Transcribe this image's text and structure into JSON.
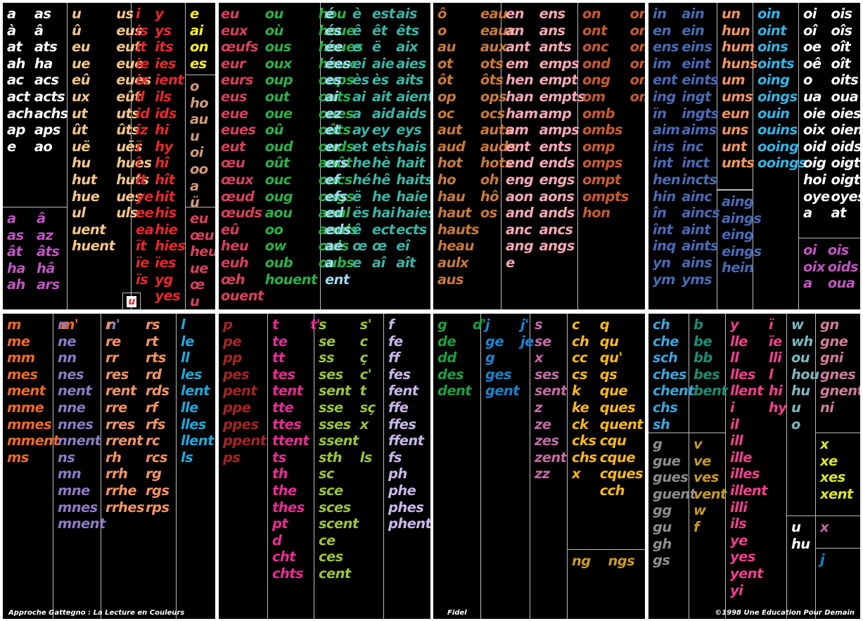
{
  "colors": {
    "white": "#ffffff",
    "pink": "#c054c0",
    "cream": "#f2c68a",
    "red": "#e8272b",
    "yellow": "#ffee2d",
    "tan": "#d09a78",
    "rose": "#d8405c",
    "green": "#2cb04a",
    "lightblue": "#9fd8f4",
    "teal": "#3cb4a4",
    "brown": "#c87a3a",
    "lightpink": "#f4a8b4",
    "rust": "#c85a30",
    "blue": "#4a6ab4",
    "peach": "#f09460",
    "aqua": "#34b4e4",
    "skyblue": "#3ca4dc",
    "orange": "#f06a24",
    "lavender": "#8c7cc4",
    "salmon": "#f49464",
    "cyan": "#20a8dc",
    "darkred": "#a82424",
    "magenta": "#e82c94",
    "olive": "#9cc43c",
    "lilac": "#c8b8e8",
    "forest": "#1ca044",
    "royal": "#1c84cc",
    "mauve": "#c46ca4",
    "gold": "#f8b818",
    "ochre": "#c89a24",
    "lime": "#d8e828",
    "darkgreen": "#1c8c74",
    "grey": "#8c8c8c",
    "brightpink": "#f0408c",
    "greyblue": "#7cb8c0",
    "dustyrose": "#d07c9c"
  },
  "top": {
    "p1": {
      "c1": [
        "a",
        "as",
        "à",
        "â",
        "at",
        "ats",
        "ah",
        "ha",
        "ac",
        "acs",
        "act",
        "acts",
        "ach",
        "achs",
        "ap",
        "aps",
        "e",
        "ao"
      ],
      "c1b": [
        "a",
        "â",
        "as",
        "az",
        "ât",
        "âts",
        "ha",
        "hâ",
        "ah",
        "ars"
      ],
      "c2": [
        "u",
        "us",
        "û",
        "eus",
        "eu",
        "eut",
        "ue",
        "eue",
        "eû",
        "eues",
        "ux",
        "eût",
        "ut",
        "uts",
        "ût",
        "ûts",
        "uë",
        "uës",
        "hu",
        "hues",
        "hut",
        "huts",
        "hue",
        "ues",
        "ul",
        "uls",
        "uent",
        "",
        "huent",
        ""
      ],
      "c3": [
        "i",
        "y",
        "is",
        "ys",
        "it",
        "its",
        "ie",
        "ies",
        "ix",
        "ient",
        "il",
        "ils",
        "id",
        "ids",
        "iz",
        "hi",
        "ï",
        "hy",
        "î",
        "hî",
        "ît",
        "hît",
        "ye",
        "hit",
        "ee",
        "his",
        "ea",
        "hie",
        "ït",
        "hies",
        "ïe",
        "ïes",
        "ïs",
        "yg",
        "",
        "yes"
      ],
      "c4a": [
        "e",
        "ai",
        "on",
        "es"
      ],
      "c4b": [
        "o",
        "ho",
        "au",
        "u",
        "oi",
        "oo",
        "a",
        "ü"
      ],
      "c4c": [
        "eu",
        "œu",
        "heu",
        "ue",
        "œ",
        "u"
      ],
      "magnet": "u"
    },
    "p2": {
      "c1": [
        "eu",
        "ou",
        "hou",
        "eux",
        "où",
        "houe",
        "œufs",
        "ous",
        "houes",
        "eur",
        "oux",
        "houx",
        "eurs",
        "oup",
        "oups",
        "eus",
        "out",
        "outs",
        "eue",
        "oue",
        "oues",
        "eues",
        "oû",
        "oûts",
        "eut",
        "oud",
        "ouds",
        "œu",
        "oût",
        "août",
        "œux",
        "ouc",
        "oucs",
        "œud",
        "oug",
        "ougs",
        "œuds",
        "aou",
        "aoul",
        "eû",
        "oo",
        "aouls",
        "heu",
        "ow",
        "ouls",
        "euh",
        "oub",
        "oubs",
        "œh",
        "houent",
        "",
        "ouent",
        ""
      ],
      "c2": [
        "é",
        "è",
        "est",
        "ais",
        "és",
        "ê",
        "êt",
        "êts",
        "ée",
        "e",
        "ë",
        "aix",
        "ées",
        "ei",
        "aie",
        "aies",
        "es",
        "ès",
        "ès",
        "aits",
        "ai",
        "ai",
        "ait",
        "aient",
        "ez",
        "a",
        "aid",
        "aids",
        "et",
        "ay",
        "ey",
        "eys",
        "er",
        "et",
        "ets",
        "hais",
        "ers",
        "he",
        "hè",
        "hait",
        "ef",
        "hé",
        "hê",
        "haits",
        "efs",
        "ë",
        "he",
        "haie",
        "ed",
        "ës",
        "hai",
        "haies",
        "eds",
        "ê",
        "ect",
        "ects",
        "ae",
        "œ",
        "œ",
        "eî",
        "a",
        "e",
        "aî",
        "aît",
        "ent",
        "",
        "",
        ""
      ],
      "c2colors": [
        "lightblue",
        "teal"
      ]
    },
    "p3": {
      "c1": [
        "ô",
        "eau",
        "o",
        "eaux",
        "au",
        "aux",
        "ot",
        "ots",
        "ôt",
        "ôts",
        "op",
        "ops",
        "oc",
        "ocs",
        "aut",
        "auts",
        "aud",
        "auds",
        "hot",
        "hots",
        "ho",
        "oh",
        "hau",
        "hô",
        "haut",
        "os",
        "hauts",
        "",
        "heau",
        "",
        "aulx",
        "",
        "aus",
        ""
      ],
      "c2": [
        "en",
        "ens",
        "an",
        "ans",
        "ant",
        "ants",
        "em",
        "emps",
        "hen",
        "empt",
        "han",
        "empts",
        "ham",
        "amp",
        "am",
        "amps",
        "ent",
        "ents",
        "end",
        "ends",
        "eng",
        "engs",
        "aon",
        "aons",
        "and",
        "ands",
        "anc",
        "ancs",
        "ang",
        "angs",
        "e",
        ""
      ],
      "c3": [
        "on",
        "ons",
        "ont",
        "onts",
        "onc",
        "oncs",
        "ond",
        "onds",
        "ong",
        "ongs",
        "om",
        "oms",
        "omb",
        "",
        "ombs",
        "",
        "omp",
        "",
        "omps",
        "",
        "ompt",
        "",
        "ompts",
        "",
        "hon",
        ""
      ]
    },
    "p4": {
      "c1": [
        "in",
        "ain",
        "en",
        "ein",
        "ens",
        "eins",
        "im",
        "eint",
        "ent",
        "eints",
        "ing",
        "ingt",
        "ïn",
        "ingts",
        "aim",
        "aims",
        "ins",
        "inc",
        "int",
        "inct",
        "hen",
        "incts",
        "hin",
        "ainc",
        "în",
        "aincs",
        "înt",
        "aint",
        "inq",
        "aints",
        "yn",
        "ains",
        "ym",
        "yms"
      ],
      "c2a": [
        "un",
        "hun",
        "hum",
        "huns",
        "um",
        "ums",
        "eun",
        "uns",
        "unt",
        "unts"
      ],
      "c2b": [
        "aing",
        "aings",
        "eing",
        "eings",
        "hein"
      ],
      "c3": [
        "oin",
        "oint",
        "oins",
        "oints",
        "oing",
        "oings",
        "ouin",
        "ouins",
        "ooing",
        "ooings"
      ],
      "c4a": [
        "oi",
        "ois",
        "oî",
        "oîs",
        "oe",
        "oît",
        "oê",
        "oît",
        "o",
        "oits",
        "ua",
        "oua",
        "oie",
        "oies",
        "oix",
        "oient",
        "oid",
        "oids",
        "oig",
        "oigt",
        "hoi",
        "oigts",
        "oye",
        "oyes",
        "a",
        "at"
      ],
      "c4b": [
        "oi",
        "ois",
        "oix",
        "oids",
        "a",
        "oua"
      ]
    }
  },
  "bottom": {
    "p1": {
      "c1": [
        "m",
        "m'",
        "me",
        "",
        "mm",
        "",
        "mes",
        "",
        "ment",
        "",
        "mme",
        "",
        "mmes",
        "",
        "mment",
        "",
        "ms",
        ""
      ],
      "c2": [
        "n",
        "n'",
        "ne",
        "",
        "nn",
        "",
        "nes",
        "",
        "nent",
        "",
        "nne",
        "",
        "nnes",
        "",
        "nnent",
        "",
        "ns",
        "",
        "mn",
        "",
        "mne",
        "",
        "mnes",
        "",
        "mnent",
        ""
      ],
      "c3": [
        "r",
        "rs",
        "re",
        "rt",
        "rr",
        "rts",
        "res",
        "rd",
        "rent",
        "rds",
        "rre",
        "rf",
        "rres",
        "rfs",
        "rrent",
        "rc",
        "rh",
        "rcs",
        "rrh",
        "rg",
        "rrhe",
        "rgs",
        "rrhes",
        "rps"
      ],
      "c4": [
        "l",
        "l'",
        "le",
        "",
        "ll",
        "",
        "les",
        "",
        "lent",
        "",
        "lle",
        "",
        "lles",
        "",
        "llent",
        "",
        "ls",
        ""
      ]
    },
    "p2": {
      "c1": [
        "p",
        "",
        "pe",
        "",
        "pp",
        "",
        "pes",
        "",
        "pent",
        "",
        "ppe",
        "",
        "ppes",
        "",
        "ppent",
        "",
        "ps",
        ""
      ],
      "c2": [
        "t",
        "t'",
        "te",
        "",
        "tt",
        "",
        "tes",
        "",
        "tent",
        "",
        "tte",
        "",
        "ttes",
        "",
        "ttent",
        "",
        "ts",
        "",
        "th",
        "",
        "the",
        "",
        "thes",
        "",
        "pt",
        "",
        "d",
        "",
        "cht",
        "",
        "chts",
        ""
      ],
      "c3": [
        "s",
        "s'",
        "se",
        "c",
        "ss",
        "ç",
        "ses",
        "c'",
        "sent",
        "t",
        "sse",
        "sç",
        "sses",
        "x",
        "ssent",
        "",
        "sth",
        "ls",
        "sc",
        "",
        "sce",
        "",
        "sces",
        "",
        "scent",
        "",
        "ce",
        "",
        "ces",
        "",
        "cent",
        ""
      ],
      "c4": [
        "f",
        "fe",
        "ff",
        "fes",
        "fent",
        "ffe",
        "ffes",
        "ffent",
        "fs",
        "ph",
        "phe",
        "phes",
        "phent"
      ]
    },
    "p3": {
      "c1": [
        "g",
        "d'",
        "de",
        "",
        "dd",
        "",
        "des",
        "",
        "dent",
        ""
      ],
      "c2": [
        "j",
        "j'",
        "ge",
        "je",
        "g",
        "",
        "ges",
        "",
        "gent",
        ""
      ],
      "c3": [
        "s",
        "se",
        "x",
        "ses",
        "sent",
        "z",
        "ze",
        "zes",
        "zent",
        "zz"
      ],
      "c4": [
        "c",
        "q",
        "ch",
        "qu",
        "cc",
        "qu'",
        "cs",
        "qs",
        "k",
        "que",
        "ke",
        "ques",
        "ck",
        "quent",
        "cks",
        "cqu",
        "chs",
        "cque",
        "x",
        "cques",
        "",
        "cch"
      ],
      "c4b": [
        "ng",
        "ngs"
      ],
      "caption": "Fidel"
    },
    "p4": {
      "c1a": [
        "ch",
        "che",
        "sch",
        "ches",
        "chent",
        "chs",
        "sh"
      ],
      "c1b": [
        "g",
        "gue",
        "gues",
        "guent",
        "gg",
        "gu",
        "gh",
        "gs"
      ],
      "c2a": [
        "b",
        "be",
        "bb",
        "bes",
        "bent"
      ],
      "c2b": [
        "v",
        "ve",
        "ves",
        "vent",
        "w",
        "f"
      ],
      "c3": [
        "y",
        "ï",
        "lle",
        "ïe",
        "ll",
        "lli",
        "lles",
        "l",
        "llent",
        "hi",
        "i",
        "hy",
        "il",
        "",
        "ill",
        "",
        "ille",
        "",
        "illes",
        "",
        "illent",
        "",
        "illi",
        "",
        "ils",
        "",
        "ye",
        "",
        "yes",
        "",
        "yent",
        "",
        "yi",
        ""
      ],
      "c4a": [
        "w",
        "wh",
        "ou",
        "hou",
        "hu",
        "u",
        "o"
      ],
      "c4b": [
        "u",
        "hu"
      ],
      "c5a": [
        "gn",
        "gne",
        "gni",
        "gnes",
        "gnent",
        "ni"
      ],
      "c5b": [
        "x",
        "xe",
        "xes",
        "xent"
      ],
      "c5c": [
        "x"
      ],
      "c5d": [
        "j"
      ]
    }
  },
  "captions": {
    "left": "Approche Gattegno : La Lecture en Couleurs",
    "right": "©1998 Une Education Pour Demain"
  }
}
